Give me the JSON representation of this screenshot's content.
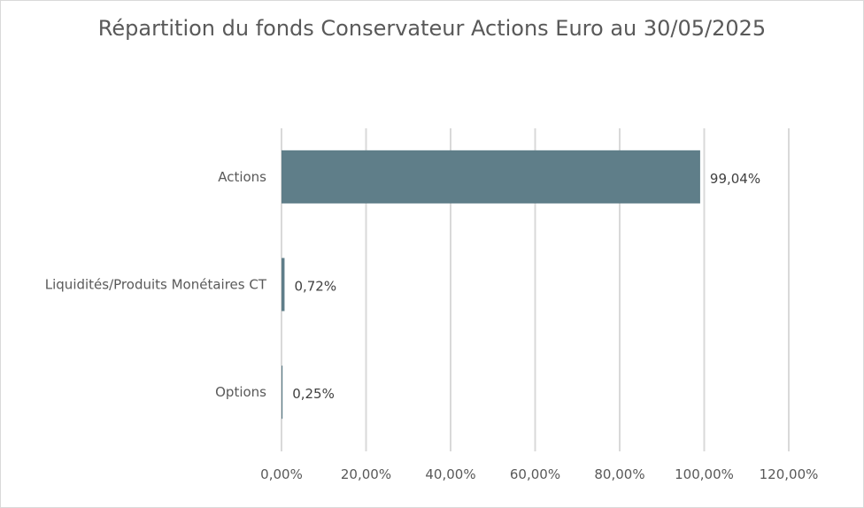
{
  "chart_data": {
    "type": "bar",
    "orientation": "horizontal",
    "title": "Répartition du fonds Conservateur Actions Euro au 30/05/2025",
    "categories": [
      "Actions",
      "Liquidités/Produits Monétaires CT",
      "Options"
    ],
    "values": [
      99.04,
      0.72,
      0.25
    ],
    "value_labels": [
      "99,04%",
      "0,72%",
      "0,25%"
    ],
    "xlim": [
      0,
      120
    ],
    "x_ticks": [
      0,
      20,
      40,
      60,
      80,
      100,
      120
    ],
    "x_tick_labels": [
      "0,00%",
      "20,00%",
      "40,00%",
      "60,00%",
      "80,00%",
      "100,00%",
      "120,00%"
    ],
    "grid": true,
    "legend": "none",
    "bar_color": "#5f7e89",
    "grid_color": "#d9d9d9"
  }
}
